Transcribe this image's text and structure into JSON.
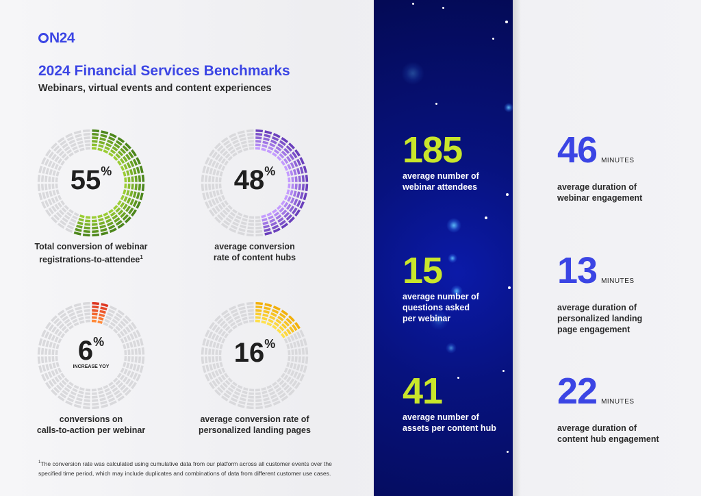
{
  "header": {
    "logo_text": "N24",
    "title": "2024 Financial Services Benchmarks",
    "subtitle": "Webinars, virtual events and content experiences"
  },
  "donuts": [
    {
      "value": 55,
      "label": "55",
      "symbol": "%",
      "sub": "",
      "caption_line1": "Total conversion of webinar",
      "caption_line2": "registrations-to-attendee",
      "caption_sup": "1",
      "colors": [
        "#9bcd35",
        "#3e7a16"
      ]
    },
    {
      "value": 48,
      "label": "48",
      "symbol": "%",
      "sub": "",
      "caption_line1": "average conversion",
      "caption_line2": "rate of content hubs",
      "caption_sup": "",
      "colors": [
        "#c49bff",
        "#5a2fb0"
      ]
    },
    {
      "value": 6,
      "label": "6",
      "symbol": "%",
      "sub": "INCREASE YOY",
      "caption_line1": "conversions on",
      "caption_line2": "calls-to-action per webinar",
      "caption_sup": "",
      "colors": [
        "#ff8a3a",
        "#d8281e"
      ]
    },
    {
      "value": 16,
      "label": "16",
      "symbol": "%",
      "sub": "",
      "caption_line1": "average conversion rate of",
      "caption_line2": "personalized landing pages",
      "caption_sup": "",
      "colors": [
        "#ffe04a",
        "#f0a800"
      ]
    }
  ],
  "stats_dark": [
    {
      "value": "185",
      "line1": "average number of",
      "line2": "webinar attendees",
      "line3": ""
    },
    {
      "value": "15",
      "line1": "average number of",
      "line2": "questions asked",
      "line3": "per webinar"
    },
    {
      "value": "41",
      "line1": "average number of",
      "line2": "assets per content hub",
      "line3": ""
    }
  ],
  "stats_light": [
    {
      "value": "46",
      "unit": "MINUTES",
      "line1": "average duration of",
      "line2": "webinar engagement",
      "line3": ""
    },
    {
      "value": "13",
      "unit": "MINUTES",
      "line1": "average duration of",
      "line2": "personalized landing",
      "line3": "page engagement"
    },
    {
      "value": "22",
      "unit": "MINUTES",
      "line1": "average duration of",
      "line2": "content hub engagement",
      "line3": ""
    }
  ],
  "footnote": {
    "marker": "1",
    "line1": "The conversion rate was calculated using cumulative data from our platform across all customer events over the",
    "line2": "specified time period, which may include duplicates and combinations of data from different customer use cases."
  },
  "colors": {
    "accent_blue": "#3b45e4",
    "lime": "#c9e62b",
    "panel": "#07127e"
  }
}
